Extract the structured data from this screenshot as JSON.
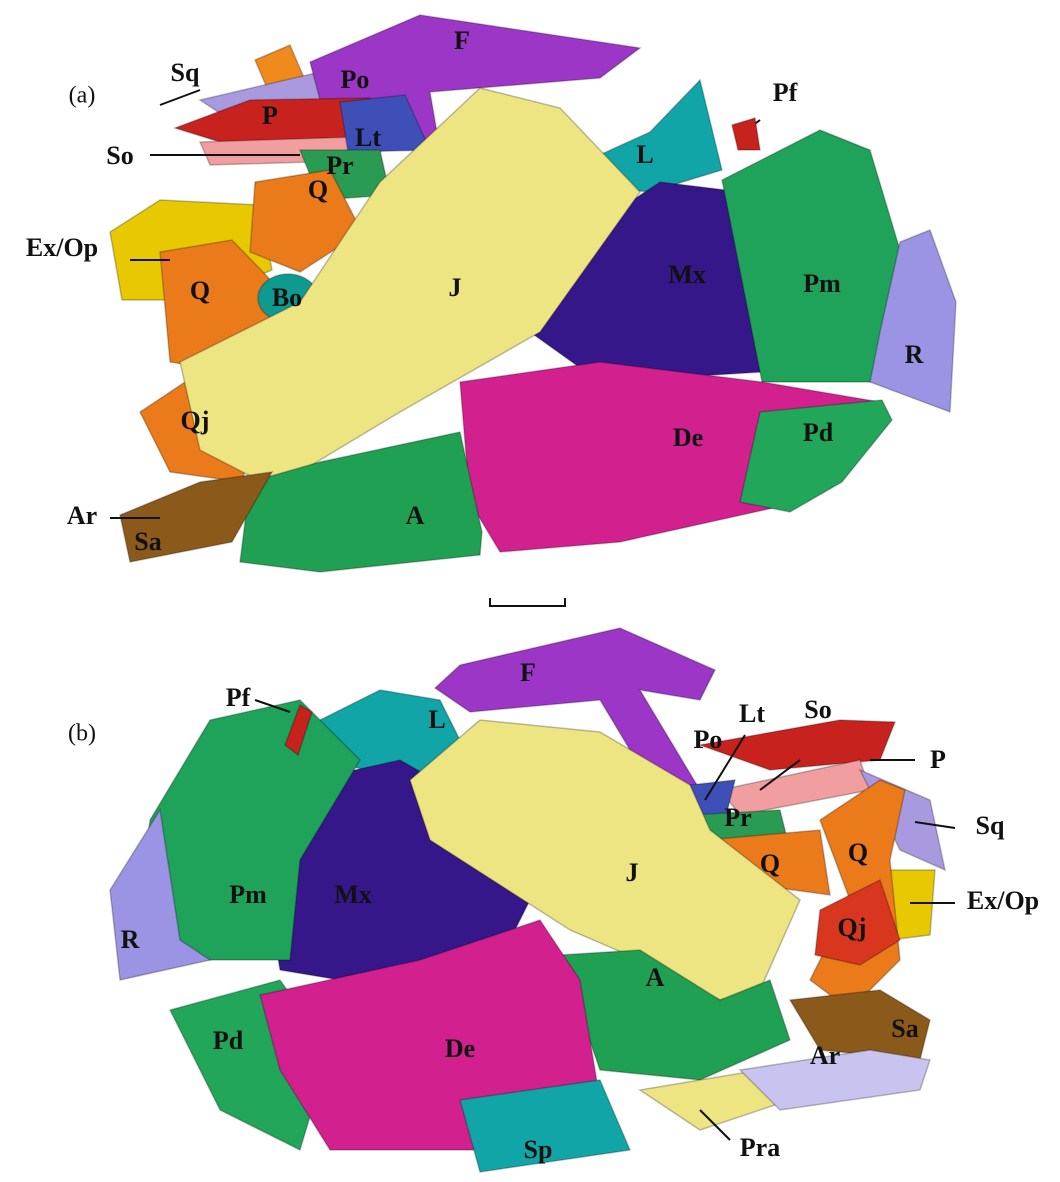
{
  "panels": [
    {
      "label": "(a)",
      "labels": [
        "Sq",
        "Po",
        "F",
        "Pf",
        "P",
        "Lt",
        "So",
        "L",
        "Pr",
        "Q",
        "Ex/Op",
        "Q",
        "Bo",
        "J",
        "Mx",
        "Pm",
        "R",
        "Qj",
        "De",
        "Pd",
        "Ar",
        "Sa",
        "A"
      ]
    },
    {
      "label": "(b)",
      "labels": [
        "Pf",
        "F",
        "Lt",
        "So",
        "Po",
        "P",
        "L",
        "Pr",
        "Sq",
        "Q",
        "Q",
        "J",
        "Pm",
        "Mx",
        "Ex/Op",
        "Qj",
        "R",
        "A",
        "Pd",
        "De",
        "Sa",
        "Ar",
        "Sp",
        "Pra"
      ]
    }
  ]
}
